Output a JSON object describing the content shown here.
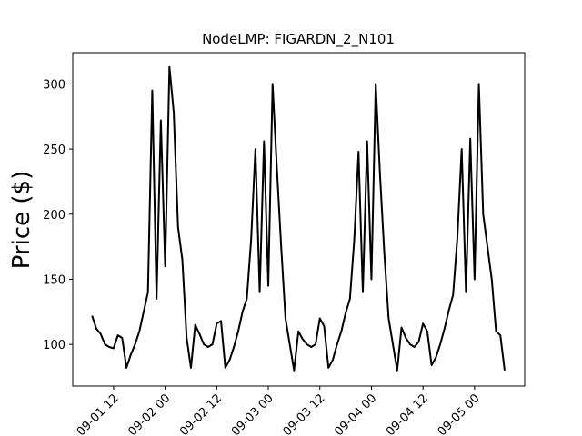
{
  "chart_data": {
    "type": "line",
    "title": "NodeLMP: FIGARDN_2_N101",
    "y_label": "Price ($)",
    "color": "#000000",
    "x": [
      "09-01 07",
      "09-01 08",
      "09-01 09",
      "09-01 10",
      "09-01 11",
      "09-01 12",
      "09-01 13",
      "09-01 14",
      "09-01 15",
      "09-01 16",
      "09-01 17",
      "09-01 18",
      "09-01 19",
      "09-01 20",
      "09-01 21",
      "09-01 22",
      "09-01 23",
      "09-02 00",
      "09-02 01",
      "09-02 02",
      "09-02 03",
      "09-02 04",
      "09-02 05",
      "09-02 06",
      "09-02 07",
      "09-02 08",
      "09-02 09",
      "09-02 10",
      "09-02 11",
      "09-02 12",
      "09-02 13",
      "09-02 14",
      "09-02 15",
      "09-02 16",
      "09-02 17",
      "09-02 18",
      "09-02 19",
      "09-02 20",
      "09-02 21",
      "09-02 22",
      "09-02 23",
      "09-03 00",
      "09-03 01",
      "09-03 02",
      "09-03 03",
      "09-03 04",
      "09-03 05",
      "09-03 06",
      "09-03 07",
      "09-03 08",
      "09-03 09",
      "09-03 10",
      "09-03 11",
      "09-03 12",
      "09-03 13",
      "09-03 14",
      "09-03 15",
      "09-03 16",
      "09-03 17",
      "09-03 18",
      "09-03 19",
      "09-03 20",
      "09-03 21",
      "09-03 22",
      "09-03 23",
      "09-04 00",
      "09-04 01",
      "09-04 02",
      "09-04 03",
      "09-04 04",
      "09-04 05",
      "09-04 06",
      "09-04 07",
      "09-04 08",
      "09-04 09",
      "09-04 10",
      "09-04 11",
      "09-04 12",
      "09-04 13",
      "09-04 14",
      "09-04 15",
      "09-04 16",
      "09-04 17",
      "09-04 18",
      "09-04 19",
      "09-04 20",
      "09-04 21",
      "09-04 22",
      "09-04 23",
      "09-05 00",
      "09-05 01",
      "09-05 02",
      "09-05 03",
      "09-05 04",
      "09-05 05",
      "09-05 06",
      "09-05 07"
    ],
    "values": [
      122,
      112,
      108,
      100,
      98,
      97,
      107,
      105,
      82,
      92,
      100,
      110,
      125,
      140,
      295,
      135,
      272,
      160,
      313,
      278,
      190,
      165,
      105,
      82,
      115,
      108,
      100,
      98,
      100,
      116,
      118,
      82,
      88,
      98,
      110,
      125,
      135,
      180,
      250,
      140,
      256,
      145,
      300,
      235,
      175,
      120,
      100,
      80,
      110,
      104,
      100,
      98,
      100,
      120,
      114,
      82,
      88,
      100,
      110,
      124,
      135,
      180,
      248,
      140,
      256,
      150,
      300,
      230,
      170,
      120,
      100,
      80,
      113,
      105,
      100,
      98,
      102,
      116,
      110,
      84,
      90,
      100,
      112,
      126,
      138,
      182,
      250,
      140,
      258,
      150,
      300,
      200,
      175,
      150,
      110,
      107,
      80
    ],
    "xlim": [
      "09-01 02:30",
      "09-05 11:40"
    ],
    "xticks": [
      "09-01 12",
      "09-02 00",
      "09-02 12",
      "09-03 00",
      "09-03 12",
      "09-04 00",
      "09-04 12",
      "09-05 00"
    ],
    "ylim": [
      68,
      324
    ],
    "yticks": [
      100,
      150,
      200,
      250,
      300
    ],
    "grid": false
  }
}
